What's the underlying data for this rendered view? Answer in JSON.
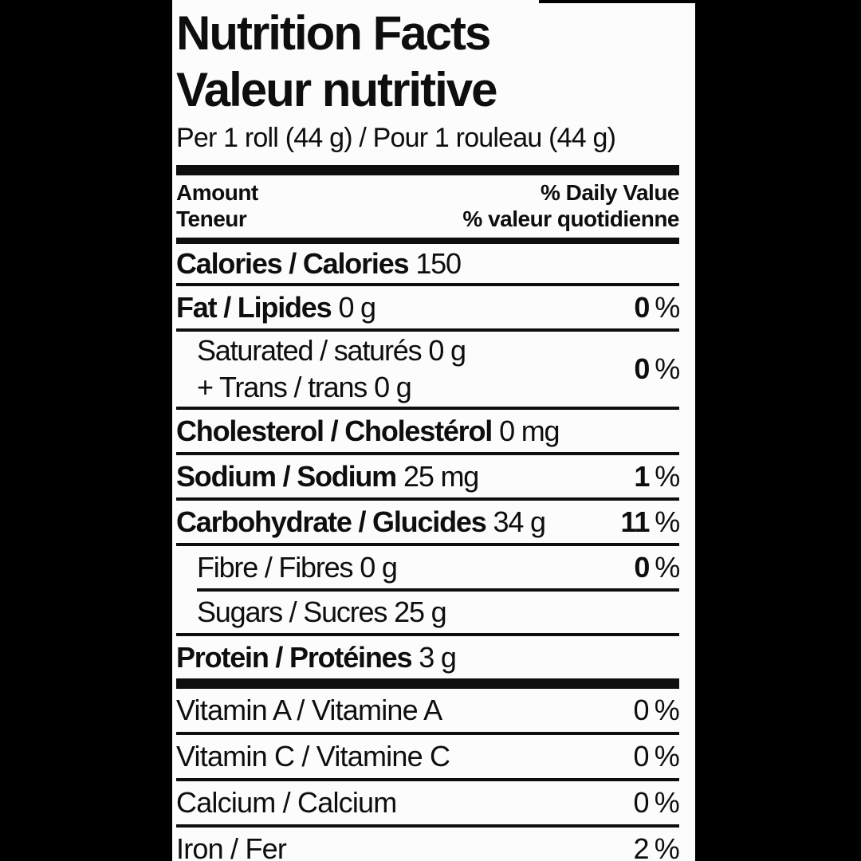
{
  "colors": {
    "page_bg": "#000000",
    "label_bg": "#fcfcfc",
    "ink": "#0e0e0e"
  },
  "label": {
    "title_en": "Nutrition Facts",
    "title_fr": "Valeur nutritive",
    "serving": "Per 1 roll (44 g) / Pour 1 rouleau (44 g)",
    "header": {
      "amount_en": "Amount",
      "amount_fr": "Teneur",
      "daily_value_en": "% Daily Value",
      "daily_value_fr": "% valeur quotidienne"
    },
    "percent_symbol": "%",
    "rows": [
      {
        "label": "Calories / Calories",
        "value": "150"
      },
      {
        "label": "Fat / Lipides",
        "value": "0 g",
        "percent": "0"
      },
      {
        "label_line1": "Saturated / saturés",
        "value_line1": "0 g",
        "label_line2": "+ Trans / trans",
        "value_line2": "0 g",
        "percent": "0"
      },
      {
        "label": "Cholesterol / Cholestérol",
        "value": "0 mg"
      },
      {
        "label": "Sodium / Sodium",
        "value": "25 mg",
        "percent": "1"
      },
      {
        "label": "Carbohydrate / Glucides",
        "value": "34 g",
        "percent": "11"
      },
      {
        "label": "Fibre / Fibres",
        "value": "0 g",
        "percent": "0"
      },
      {
        "label": "Sugars / Sucres",
        "value": "25 g"
      },
      {
        "label": "Protein / Protéines",
        "value": "3 g"
      }
    ],
    "micronutrients": [
      {
        "label": "Vitamin A / Vitamine A",
        "percent": "0"
      },
      {
        "label": "Vitamin C / Vitamine C",
        "percent": "0"
      },
      {
        "label": "Calcium / Calcium",
        "percent": "0"
      },
      {
        "label": "Iron / Fer",
        "percent": "2"
      }
    ]
  }
}
